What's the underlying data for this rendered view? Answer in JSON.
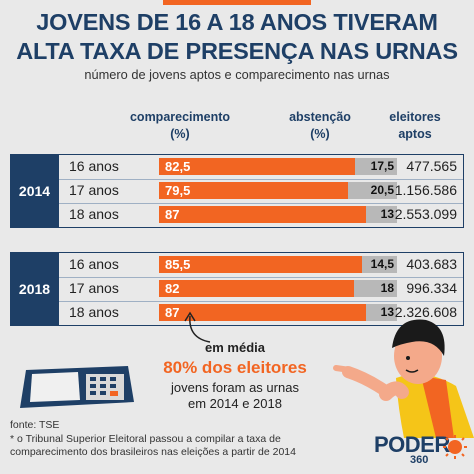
{
  "header": {
    "title_line1": "JOVENS DE 16 A 18 ANOS TIVERAM",
    "title_line2": "ALTA TAXA DE PRESENÇA NAS URNAS",
    "subtitle": "número de jovens aptos e comparecimento nas urnas"
  },
  "columns": {
    "comparecimento": "comparecimento",
    "comparecimento_unit": "(%)",
    "abstencao": "abstenção",
    "abstencao_unit": "(%)",
    "eleitores": "eleitores",
    "eleitores_unit": "aptos"
  },
  "chart_data": {
    "type": "bar",
    "stacked": true,
    "groups": [
      {
        "year": "2014",
        "rows": [
          {
            "age": "16 anos",
            "comparecimento": 82.5,
            "comparecimento_label": "82,5",
            "abstencao": 17.5,
            "abstencao_label": "17,5",
            "eleitores": "477.565"
          },
          {
            "age": "17 anos",
            "comparecimento": 79.5,
            "comparecimento_label": "79,5",
            "abstencao": 20.5,
            "abstencao_label": "20,5",
            "eleitores": "1.156.586"
          },
          {
            "age": "18 anos",
            "comparecimento": 87,
            "comparecimento_label": "87",
            "abstencao": 13,
            "abstencao_label": "13",
            "eleitores": "2.553.099"
          }
        ]
      },
      {
        "year": "2018",
        "rows": [
          {
            "age": "16 anos",
            "comparecimento": 85.5,
            "comparecimento_label": "85,5",
            "abstencao": 14.5,
            "abstencao_label": "14,5",
            "eleitores": "403.683"
          },
          {
            "age": "17 anos",
            "comparecimento": 82,
            "comparecimento_label": "82",
            "abstencao": 18,
            "abstencao_label": "18",
            "eleitores": "996.334"
          },
          {
            "age": "18 anos",
            "comparecimento": 87,
            "comparecimento_label": "87",
            "abstencao": 13,
            "abstencao_label": "13",
            "eleitores": "2.326.608"
          }
        ]
      }
    ],
    "colors": {
      "comparecimento": "#f26522",
      "abstencao": "#b8b8b8",
      "year_box": "#1e3f66"
    }
  },
  "callout": {
    "line1": "em média",
    "line2": "80% dos eleitores",
    "line3": "jovens foram as urnas",
    "line4": "em 2014 e 2018"
  },
  "footer": {
    "source": "fonte: TSE",
    "note_line1": "* o Tribunal Superior Eleitoral passou a compilar a taxa de",
    "note_line2": "comparecimento dos brasileiros nas eleições a partir de 2014"
  },
  "brand": {
    "name": "PODER",
    "sub": "360",
    "accent": "#f26522",
    "primary": "#1e3f66"
  },
  "icons": {
    "voting_machine": "voting-machine-icon",
    "young_person": "young-person-illustration",
    "logo_sun": "logo-sun-icon"
  }
}
